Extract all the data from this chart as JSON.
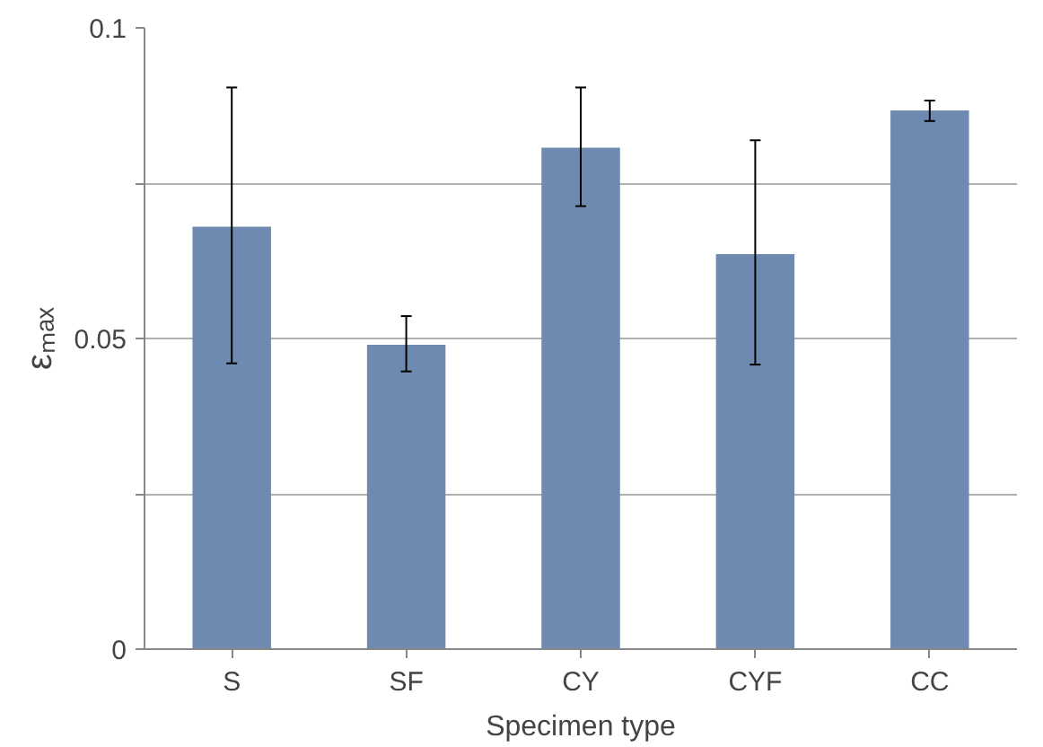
{
  "chart_data": {
    "type": "bar",
    "xlabel": "Specimen type",
    "ylabel": "εₘₐₓ",
    "categories": [
      "S",
      "SF",
      "CY",
      "CYF",
      "CC"
    ],
    "values": [
      0.068,
      0.049,
      0.0807,
      0.0636,
      0.0867
    ],
    "errors": [
      [
        0.046,
        0.0904
      ],
      [
        0.0447,
        0.0536
      ],
      [
        0.0713,
        0.0904
      ],
      [
        0.0458,
        0.0819
      ],
      [
        0.085,
        0.0883
      ]
    ],
    "color": "#6f8ab0",
    "ylim": [
      0,
      0.1
    ],
    "yticks": [
      0,
      {
        "value": 0.025,
        "label": null
      },
      0.05,
      {
        "value": 0.075,
        "label": null
      },
      0.1
    ],
    "grid": "y"
  }
}
